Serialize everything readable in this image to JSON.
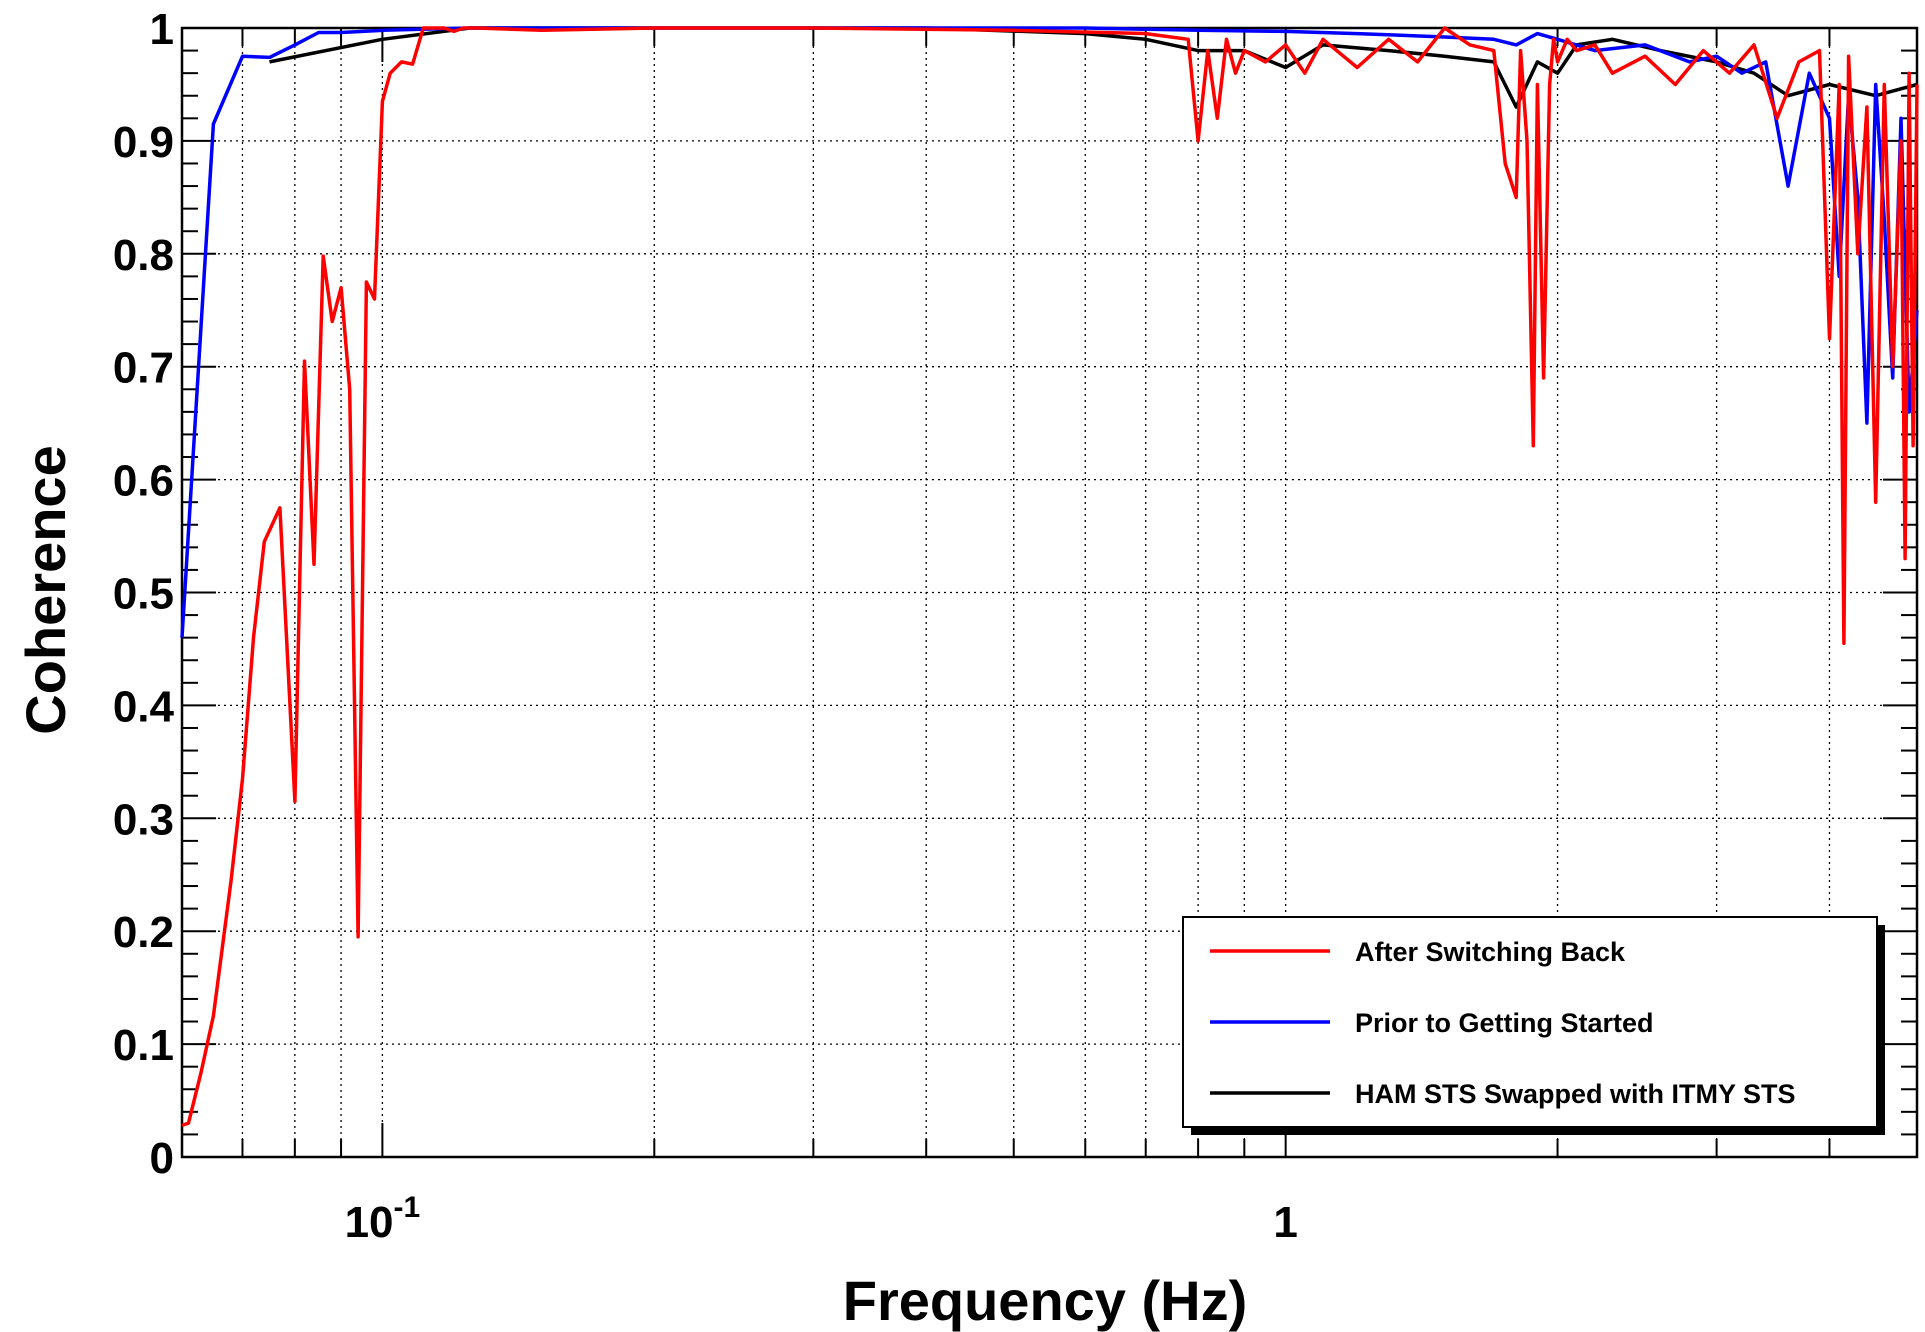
{
  "chart_data": {
    "type": "line",
    "title": "",
    "xlabel": "Frequency (Hz)",
    "ylabel": "Coherence",
    "xscale": "log",
    "xlim": [
      0.06,
      5.0
    ],
    "ylim": [
      0,
      1
    ],
    "grid": true,
    "legend_position": "bottom-right",
    "x_tick_labels": [
      {
        "value": 0.1,
        "base": "10",
        "exp": "-1"
      },
      {
        "value": 1,
        "base": "1",
        "exp": ""
      }
    ],
    "y_tick_labels": [
      "0",
      "0.1",
      "0.2",
      "0.3",
      "0.4",
      "0.5",
      "0.6",
      "0.7",
      "0.8",
      "0.9",
      "1"
    ],
    "series": [
      {
        "name": "HAM STS Swapped with ITMY STS",
        "color": "#000000",
        "x": [
          0.075,
          0.1,
          0.125,
          0.2,
          0.4,
          0.6,
          0.7,
          0.8,
          0.9,
          1.0,
          1.1,
          1.3,
          1.5,
          1.7,
          1.8,
          1.9,
          2.0,
          2.1,
          2.3,
          2.6,
          3.0,
          3.3,
          3.6,
          4.0,
          4.5,
          5.0
        ],
        "y": [
          0.97,
          0.99,
          1.0,
          1.0,
          1.0,
          0.995,
          0.99,
          0.98,
          0.98,
          0.965,
          0.985,
          0.98,
          0.975,
          0.97,
          0.93,
          0.97,
          0.96,
          0.985,
          0.99,
          0.98,
          0.97,
          0.96,
          0.94,
          0.95,
          0.94,
          0.95
        ]
      },
      {
        "name": "Prior to Getting Started",
        "color": "#0000ff",
        "x": [
          0.06,
          0.065,
          0.07,
          0.075,
          0.08,
          0.085,
          0.09,
          0.1,
          0.125,
          0.3,
          0.6,
          0.8,
          1.0,
          1.2,
          1.5,
          1.7,
          1.8,
          1.9,
          2.0,
          2.2,
          2.5,
          2.8,
          3.0,
          3.2,
          3.4,
          3.6,
          3.8,
          4.0,
          4.1,
          4.2,
          4.3,
          4.4,
          4.5,
          4.6,
          4.7,
          4.8,
          4.9,
          5.0
        ],
        "y": [
          0.46,
          0.915,
          0.975,
          0.974,
          0.985,
          0.996,
          0.996,
          0.998,
          1.0,
          1.0,
          1.0,
          0.998,
          0.997,
          0.995,
          0.992,
          0.99,
          0.985,
          0.995,
          0.99,
          0.98,
          0.985,
          0.97,
          0.975,
          0.96,
          0.97,
          0.86,
          0.96,
          0.92,
          0.78,
          0.94,
          0.85,
          0.65,
          0.95,
          0.83,
          0.69,
          0.92,
          0.66,
          0.75
        ]
      },
      {
        "name": "After Switching Back",
        "color": "#ff0000",
        "x": [
          0.06,
          0.061,
          0.063,
          0.065,
          0.068,
          0.07,
          0.072,
          0.074,
          0.077,
          0.08,
          0.082,
          0.084,
          0.086,
          0.088,
          0.09,
          0.092,
          0.094,
          0.096,
          0.098,
          0.1,
          0.102,
          0.105,
          0.108,
          0.111,
          0.114,
          0.117,
          0.12,
          0.123,
          0.127,
          0.15,
          0.2,
          0.3,
          0.5,
          0.7,
          0.78,
          0.8,
          0.82,
          0.84,
          0.86,
          0.88,
          0.9,
          0.95,
          1.0,
          1.05,
          1.1,
          1.2,
          1.3,
          1.4,
          1.5,
          1.6,
          1.7,
          1.75,
          1.8,
          1.82,
          1.85,
          1.88,
          1.9,
          1.93,
          1.96,
          1.98,
          2.0,
          2.05,
          2.1,
          2.2,
          2.3,
          2.5,
          2.7,
          2.9,
          3.1,
          3.3,
          3.5,
          3.7,
          3.9,
          4.0,
          4.1,
          4.15,
          4.2,
          4.3,
          4.4,
          4.5,
          4.6,
          4.7,
          4.8,
          4.85,
          4.9,
          4.95,
          5.0
        ],
        "y": [
          0.028,
          0.03,
          0.075,
          0.125,
          0.245,
          0.335,
          0.46,
          0.545,
          0.575,
          0.315,
          0.705,
          0.525,
          0.798,
          0.74,
          0.77,
          0.68,
          0.195,
          0.775,
          0.76,
          0.935,
          0.96,
          0.97,
          0.968,
          1.0,
          1.0,
          1.0,
          0.997,
          1.0,
          1.0,
          0.998,
          1.0,
          1.0,
          0.998,
          0.995,
          0.99,
          0.9,
          0.98,
          0.92,
          0.99,
          0.96,
          0.98,
          0.97,
          0.985,
          0.96,
          0.99,
          0.965,
          0.99,
          0.97,
          1.0,
          0.985,
          0.98,
          0.88,
          0.85,
          0.98,
          0.9,
          0.63,
          0.95,
          0.69,
          0.95,
          0.99,
          0.97,
          0.99,
          0.98,
          0.985,
          0.96,
          0.975,
          0.95,
          0.98,
          0.96,
          0.985,
          0.92,
          0.97,
          0.98,
          0.725,
          0.95,
          0.455,
          0.975,
          0.8,
          0.93,
          0.58,
          0.95,
          0.7,
          0.9,
          0.53,
          0.96,
          0.63,
          0.95
        ]
      }
    ],
    "legend_entries": [
      {
        "label": "After Switching Back",
        "color": "#ff0000"
      },
      {
        "label": "Prior to Getting Started",
        "color": "#0000ff"
      },
      {
        "label": "HAM STS Swapped with ITMY STS",
        "color": "#000000"
      }
    ]
  }
}
